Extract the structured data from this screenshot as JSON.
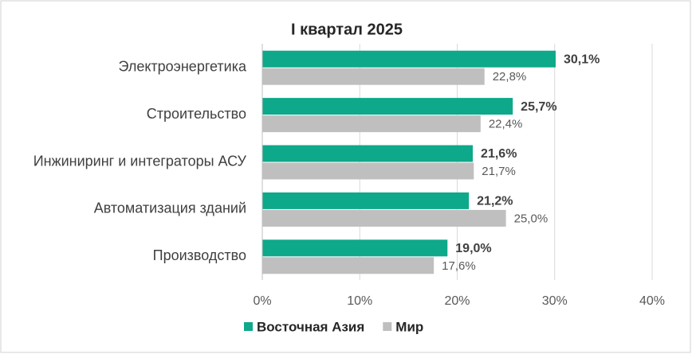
{
  "chart_data": {
    "type": "bar",
    "orientation": "horizontal",
    "title": "I квартал 2025",
    "categories": [
      "Электроэнергетика",
      "Строительство",
      "Инжиниринг и интеграторы АСУ",
      "Автоматизация зданий",
      "Производство"
    ],
    "series": [
      {
        "name": "Восточная Азия",
        "color": "#0ea88b",
        "values": [
          30.1,
          25.7,
          21.6,
          21.2,
          19.0
        ],
        "value_labels": [
          "30,1%",
          "25,7%",
          "21,6%",
          "21,2%",
          "19,0%"
        ]
      },
      {
        "name": "Мир",
        "color": "#bfbfbf",
        "values": [
          22.8,
          22.4,
          21.7,
          25.0,
          17.6
        ],
        "value_labels": [
          "22,8%",
          "22,4%",
          "21,7%",
          "25,0%",
          "17,6%"
        ]
      }
    ],
    "xlim": [
      0,
      40
    ],
    "xticks": [
      {
        "value": 0,
        "label": "0%"
      },
      {
        "value": 10,
        "label": "10%"
      },
      {
        "value": 20,
        "label": "20%"
      },
      {
        "value": 30,
        "label": "30%"
      },
      {
        "value": 40,
        "label": "40%"
      }
    ],
    "grid": true,
    "legend": "bottom"
  }
}
